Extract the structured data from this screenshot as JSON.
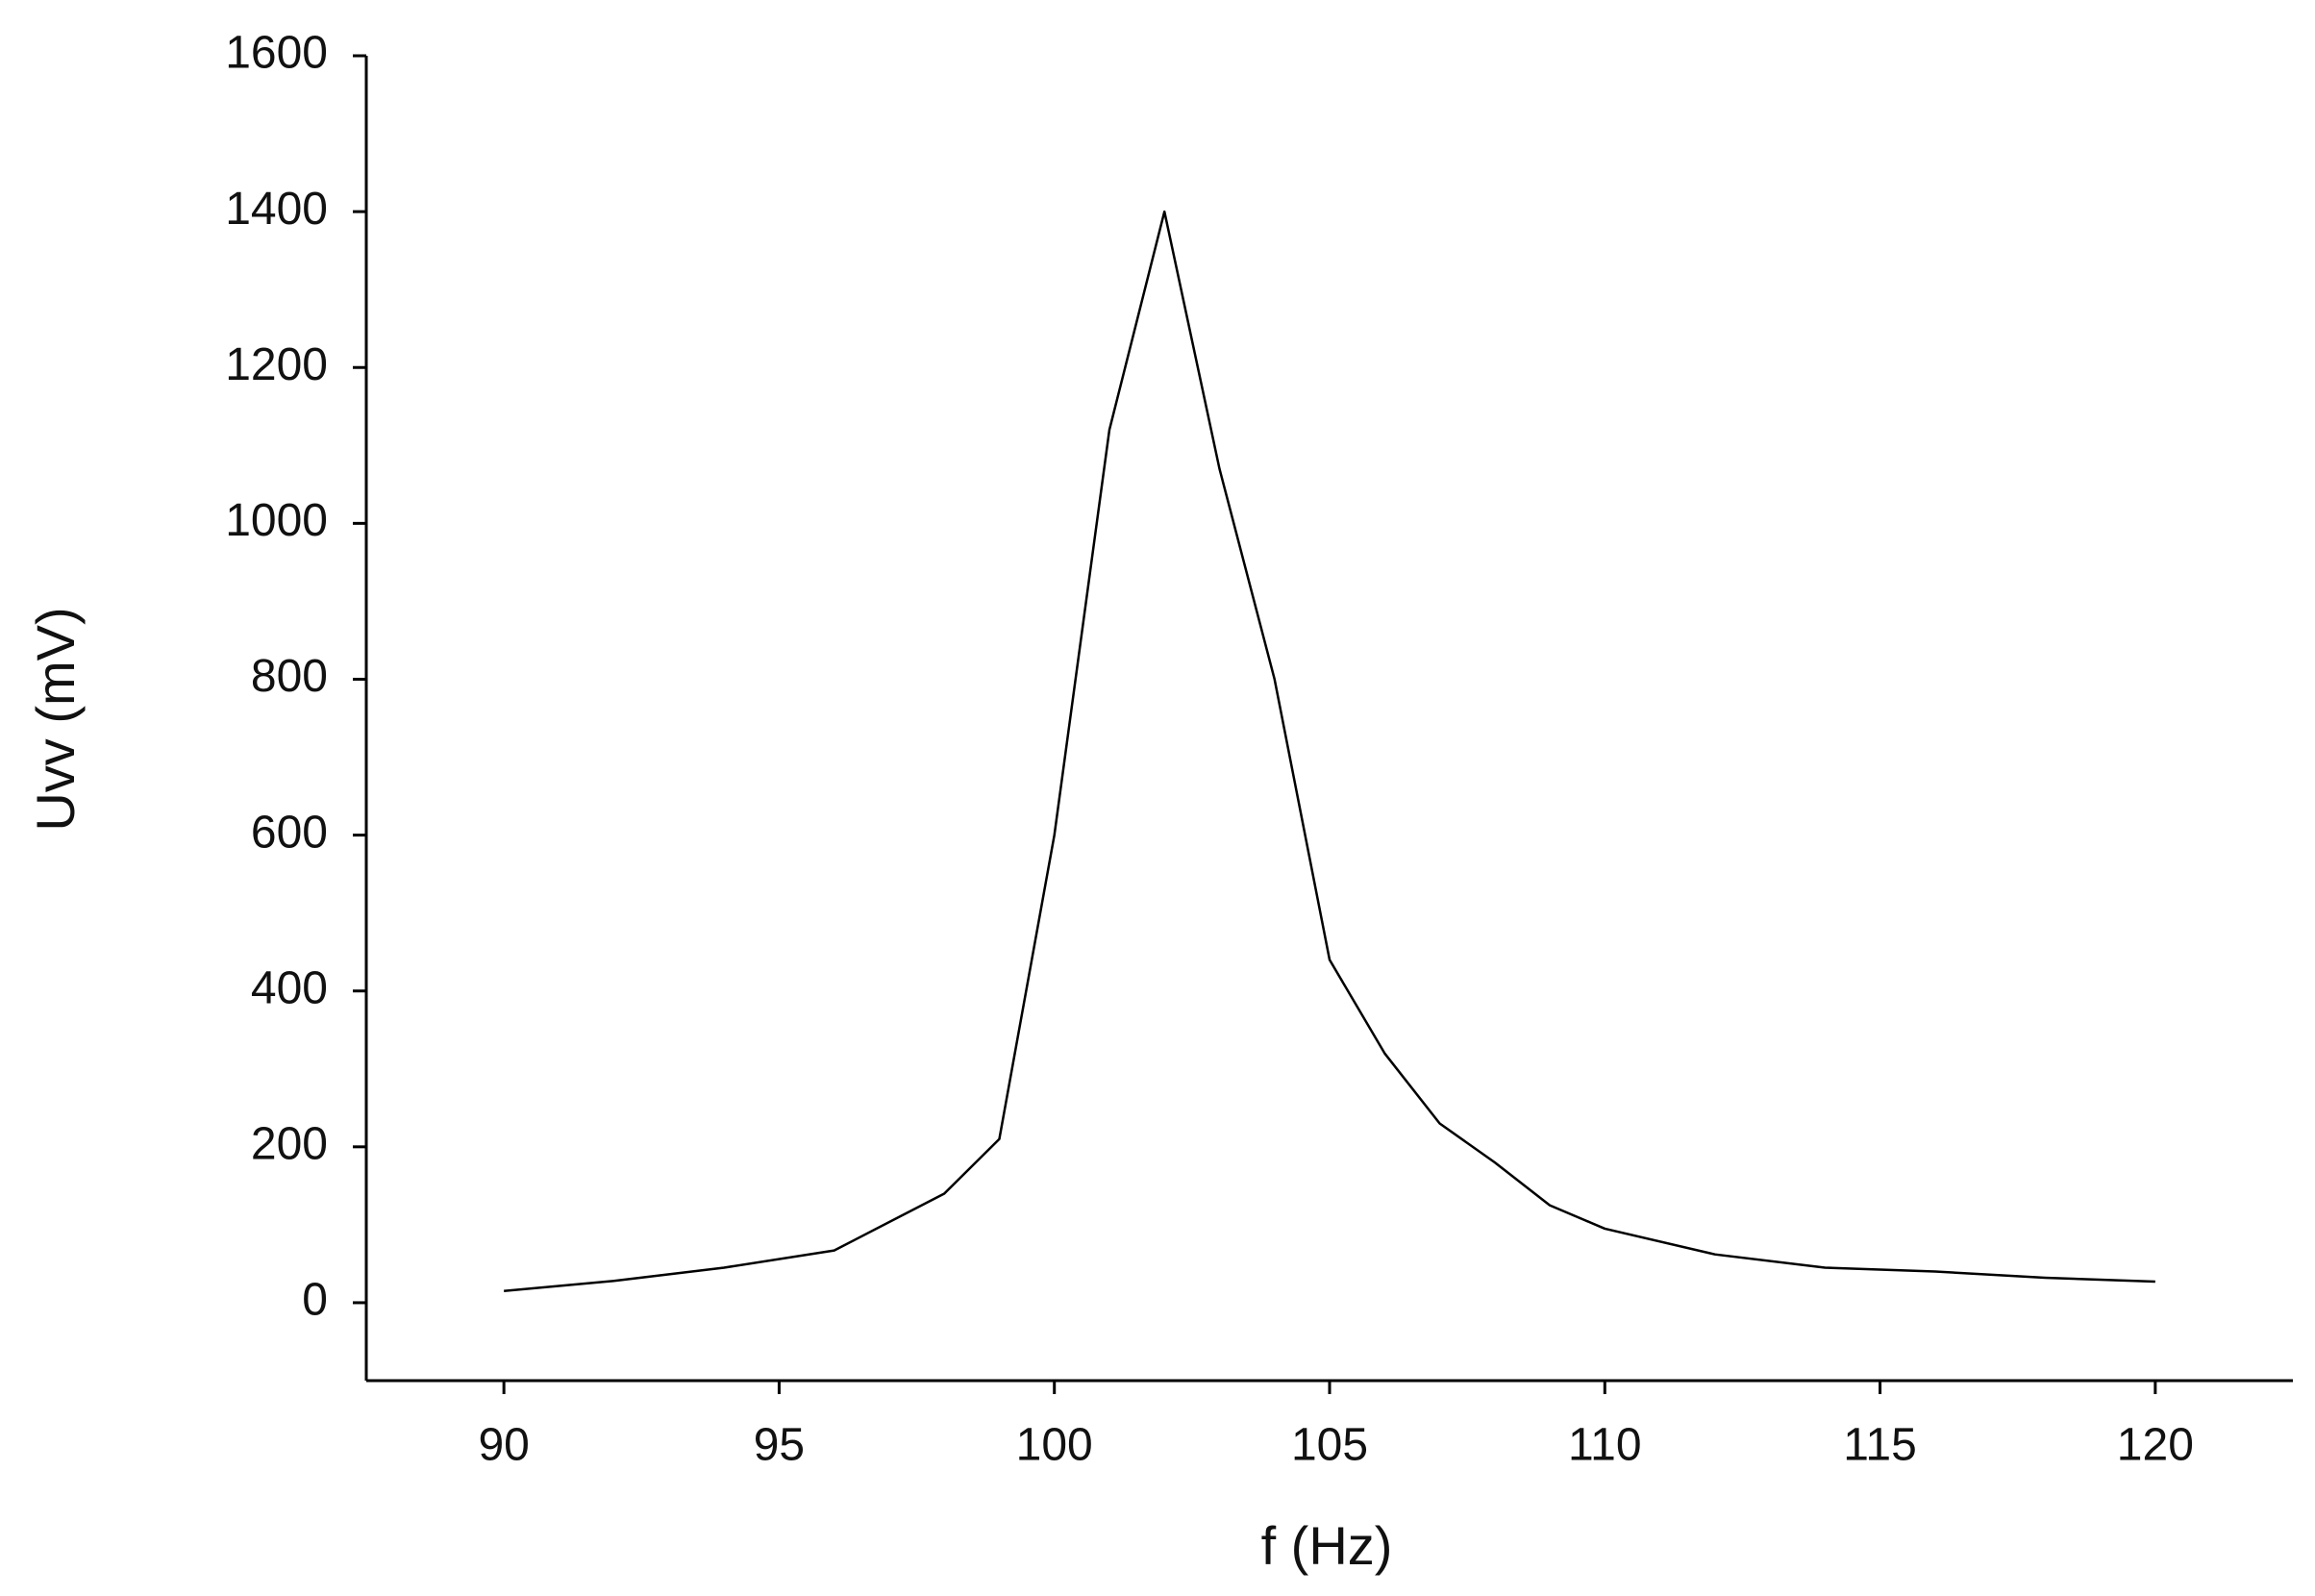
{
  "chart_data": {
    "type": "line",
    "x_label": "f (Hz)",
    "y_label": "Uvv (mV)",
    "x": [
      90,
      92,
      94,
      96,
      98,
      99,
      100,
      101,
      102,
      103,
      104,
      105,
      106,
      107,
      108,
      109,
      110,
      112,
      114,
      116,
      118,
      120
    ],
    "series": [
      {
        "color": "#000000",
        "values": [
          15,
          28,
          45,
          67,
          140,
          210,
          600,
          1120,
          1400,
          1070,
          800,
          440,
          320,
          230,
          180,
          125,
          95,
          62,
          45,
          40,
          32,
          27
        ]
      }
    ],
    "xlim": [
      87.5,
      122.5
    ],
    "xticks": [
      90,
      95,
      100,
      105,
      110,
      115,
      120
    ],
    "ylim": [
      -100,
      1600
    ],
    "yticks": [
      0,
      200,
      400,
      600,
      800,
      1000,
      1200,
      1400,
      1600
    ],
    "grid": false
  }
}
